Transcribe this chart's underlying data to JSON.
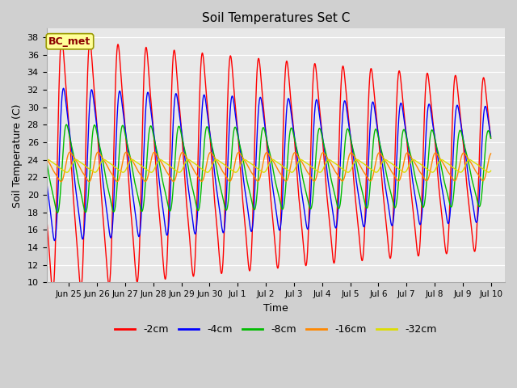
{
  "title": "Soil Temperatures Set C",
  "xlabel": "Time",
  "ylabel": "Soil Temperature (C)",
  "ylim": [
    10,
    39
  ],
  "annotation": "BC_met",
  "line_colors": {
    "-2cm": "#ff0000",
    "-4cm": "#0000ff",
    "-8cm": "#00bb00",
    "-16cm": "#ff8800",
    "-32cm": "#dddd00"
  },
  "depths": [
    "-2cm",
    "-4cm",
    "-8cm",
    "-16cm",
    "-32cm"
  ]
}
